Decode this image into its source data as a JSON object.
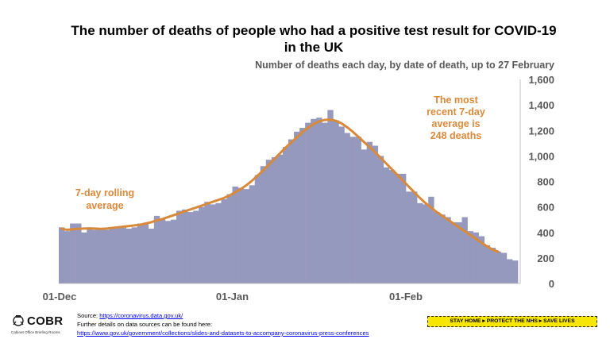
{
  "header": {
    "title_line1": "The number of deaths of people who had a positive test result for COVID-19",
    "title_line2": "in the UK",
    "subtitle": "Number of deaths each day, by date of death, up to 27 February"
  },
  "annotations": {
    "left": [
      "7-day rolling",
      "average"
    ],
    "right": [
      "The most",
      "recent 7-day",
      "average is",
      "248 deaths"
    ]
  },
  "footer": {
    "logo_text": "COBR",
    "logo_sub": "Cabinet Office Briefing Rooms",
    "source_prefix": "Source: ",
    "source_link": "https://coronavirus.data.gov.uk/",
    "details_text": "Further details on data sources can be found here:",
    "details_link": "https://www.gov.uk/government/collections/slides-and-datasets-to-accompany-coronavirus-press-conferences",
    "banner": "STAY HOME ▸ PROTECT THE NHS ▸ SAVE LIVES"
  },
  "colors": {
    "bars": "#9699be",
    "line": "#d9893a",
    "annotation": "#d9893a",
    "axis_text": "#595959"
  },
  "chart_data": {
    "type": "bar",
    "title": "The number of deaths of people who had a positive test result for COVID-19 in the UK",
    "subtitle": "Number of deaths each day, by date of death, up to 27 February",
    "start_date": "01-Dec",
    "x_ticks": [
      "01-Dec",
      "01-Jan",
      "01-Feb"
    ],
    "y_ticks": [
      "0",
      "200",
      "400",
      "600",
      "800",
      "1,000",
      "1,200",
      "1,400",
      "1,600"
    ],
    "ylim": [
      0,
      1600
    ],
    "y_axis_position": "right",
    "grid": false,
    "series": [
      {
        "name": "",
        "kind": "bar",
        "values": [
          440,
          410,
          470,
          470,
          400,
          430,
          420,
          430,
          420,
          430,
          440,
          450,
          430,
          440,
          470,
          470,
          430,
          530,
          510,
          490,
          500,
          570,
          580,
          560,
          570,
          600,
          640,
          620,
          630,
          660,
          700,
          760,
          750,
          740,
          770,
          850,
          920,
          970,
          990,
          1010,
          1070,
          1130,
          1190,
          1220,
          1260,
          1290,
          1300,
          1260,
          1360,
          1280,
          1230,
          1180,
          1150,
          1150,
          1050,
          1110,
          1080,
          1000,
          910,
          890,
          860,
          860,
          720,
          720,
          630,
          620,
          680,
          560,
          540,
          520,
          480,
          480,
          520,
          410,
          400,
          370,
          300,
          280,
          250,
          240,
          190,
          180
        ]
      },
      {
        "name": "7-day rolling average",
        "kind": "line",
        "values": [
          430,
          420,
          425,
          428,
          430,
          432,
          430,
          428,
          430,
          435,
          440,
          445,
          450,
          455,
          460,
          470,
          480,
          495,
          505,
          520,
          535,
          550,
          565,
          580,
          595,
          610,
          625,
          640,
          655,
          670,
          690,
          715,
          740,
          770,
          805,
          845,
          885,
          930,
          975,
          1020,
          1065,
          1105,
          1145,
          1185,
          1220,
          1250,
          1270,
          1282,
          1285,
          1275,
          1255,
          1225,
          1190,
          1150,
          1110,
          1070,
          1030,
          985,
          940,
          895,
          850,
          805,
          760,
          715,
          670,
          630,
          595,
          560,
          530,
          500,
          470,
          440,
          410,
          380,
          350,
          320,
          290,
          265,
          248
        ]
      }
    ],
    "annotations": [
      {
        "text": "7-day rolling average"
      },
      {
        "text": "The most recent 7-day average is 248 deaths"
      }
    ]
  }
}
